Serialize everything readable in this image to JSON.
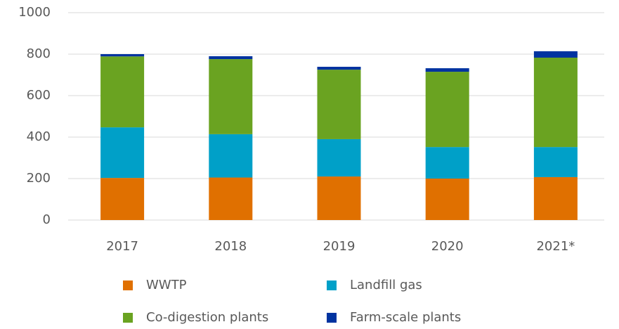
{
  "chart_data": {
    "type": "stacked_bar",
    "categories": [
      "2017",
      "2018",
      "2019",
      "2020",
      "2021*"
    ],
    "series": [
      {
        "name": "WWTP",
        "color": "#e07000",
        "values": [
          203,
          205,
          210,
          200,
          207
        ]
      },
      {
        "name": "Landfill gas",
        "color": "#00a0c8",
        "values": [
          244,
          209,
          180,
          152,
          145
        ]
      },
      {
        "name": "Co-digestion plants",
        "color": "#6aa321",
        "values": [
          342,
          362,
          335,
          363,
          431
        ]
      },
      {
        "name": "Farm-scale plants",
        "color": "#0033a0",
        "values": [
          11,
          14,
          14,
          17,
          31
        ]
      }
    ],
    "ylim": [
      0,
      1000
    ],
    "yticks": [
      0,
      200,
      400,
      600,
      800,
      1000
    ],
    "grid": true
  }
}
